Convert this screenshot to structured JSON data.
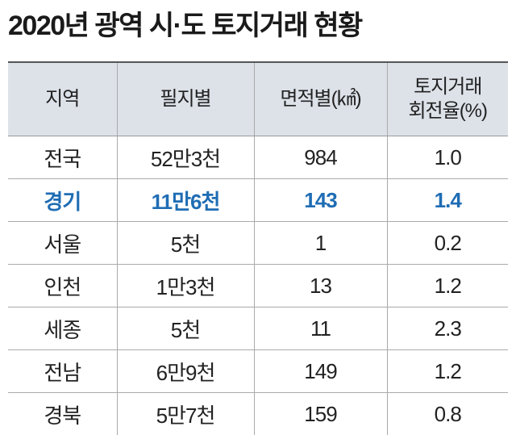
{
  "title": "2020년 광역 시·도 토지거래 현황",
  "table": {
    "header": [
      "지역",
      "필지별",
      "면적별(㎢)",
      "토지거래\n회전율(%)"
    ],
    "rows": [
      [
        "전국",
        "52만3천",
        "984",
        "1.0"
      ],
      [
        "경기",
        "11만6천",
        "143",
        "1.4"
      ],
      [
        "서울",
        "5천",
        "1",
        "0.2"
      ],
      [
        "인천",
        "1만3천",
        "13",
        "1.2"
      ],
      [
        "세종",
        "5천",
        "11",
        "2.3"
      ],
      [
        "전남",
        "6만9천",
        "149",
        "1.2"
      ],
      [
        "경북",
        "5만7천",
        "159",
        "0.8"
      ]
    ],
    "highlight": {
      "row": 1,
      "color": "#1f6db4"
    }
  }
}
